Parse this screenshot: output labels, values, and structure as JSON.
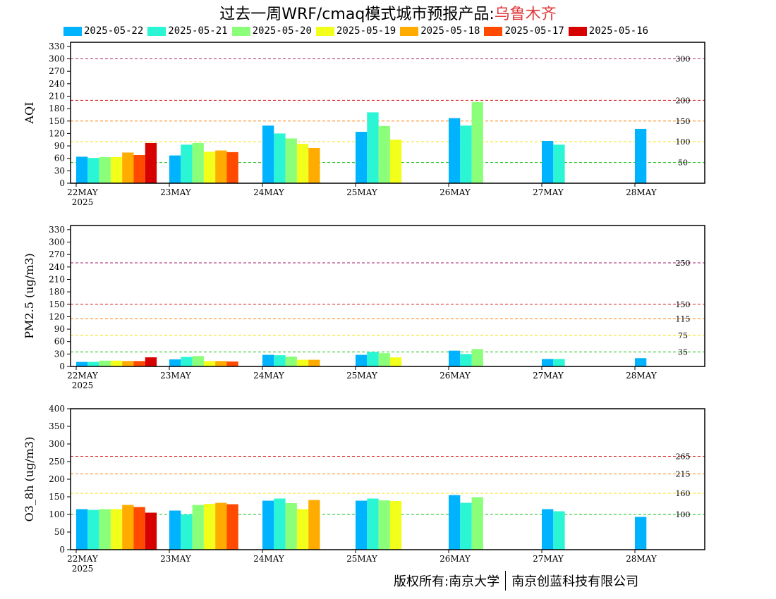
{
  "title": {
    "prefix": "过去一周WRF/cmaq模式城市预报产品:",
    "city": "乌鲁木齐"
  },
  "legend": [
    {
      "label": "2025-05-22",
      "color": "#00b3ff"
    },
    {
      "label": "2025-05-21",
      "color": "#2af5d5"
    },
    {
      "label": "2025-05-20",
      "color": "#8cff7a"
    },
    {
      "label": "2025-05-19",
      "color": "#f2ff1a"
    },
    {
      "label": "2025-05-18",
      "color": "#ffab00"
    },
    {
      "label": "2025-05-17",
      "color": "#ff4a00"
    },
    {
      "label": "2025-05-16",
      "color": "#d70000"
    }
  ],
  "footer": {
    "left": "版权所有:南京大学",
    "right": "南京创蓝科技有限公司"
  },
  "chart_data": [
    {
      "type": "bar",
      "ylabel": "AQI",
      "ylim": [
        0,
        340
      ],
      "yticks": [
        0,
        30,
        60,
        90,
        120,
        150,
        180,
        210,
        240,
        270,
        300,
        330
      ],
      "categories": [
        "22MAY",
        "23MAY",
        "24MAY",
        "25MAY",
        "26MAY",
        "27MAY",
        "28MAY"
      ],
      "year_label": "2025",
      "series": [
        {
          "name": "2025-05-22",
          "values": [
            64,
            67,
            139,
            124,
            157,
            102,
            131
          ]
        },
        {
          "name": "2025-05-21",
          "values": [
            61,
            93,
            120,
            171,
            139,
            93,
            null
          ]
        },
        {
          "name": "2025-05-20",
          "values": [
            63,
            97,
            108,
            138,
            196,
            null,
            null
          ]
        },
        {
          "name": "2025-05-19",
          "values": [
            63,
            76,
            95,
            105,
            null,
            null,
            null
          ]
        },
        {
          "name": "2025-05-18",
          "values": [
            74,
            79,
            85,
            null,
            null,
            null,
            null
          ]
        },
        {
          "name": "2025-05-17",
          "values": [
            68,
            75,
            null,
            null,
            null,
            null,
            null
          ]
        },
        {
          "name": "2025-05-16",
          "values": [
            97,
            null,
            null,
            null,
            null,
            null,
            null
          ]
        }
      ],
      "reference_lines": [
        {
          "value": 300,
          "label": "300",
          "color": "#a8206b"
        },
        {
          "value": 200,
          "label": "200",
          "color": "#d81818"
        },
        {
          "value": 150,
          "label": "150",
          "color": "#ff8000"
        },
        {
          "value": 100,
          "label": "100",
          "color": "#f0e000"
        },
        {
          "value": 50,
          "label": "50",
          "color": "#10c010"
        }
      ]
    },
    {
      "type": "bar",
      "ylabel": "PM2.5 (ug/m3)",
      "ylim": [
        0,
        340
      ],
      "yticks": [
        0,
        30,
        60,
        90,
        120,
        150,
        180,
        210,
        240,
        270,
        300,
        330
      ],
      "categories": [
        "22MAY",
        "23MAY",
        "24MAY",
        "25MAY",
        "26MAY",
        "27MAY",
        "28MAY"
      ],
      "year_label": "2025",
      "series": [
        {
          "name": "2025-05-22",
          "values": [
            11,
            17,
            28,
            28,
            38,
            18,
            20
          ]
        },
        {
          "name": "2025-05-21",
          "values": [
            11,
            23,
            27,
            35,
            30,
            18,
            null
          ]
        },
        {
          "name": "2025-05-20",
          "values": [
            14,
            25,
            24,
            32,
            42,
            null,
            null
          ]
        },
        {
          "name": "2025-05-19",
          "values": [
            14,
            13,
            16,
            22,
            null,
            null,
            null
          ]
        },
        {
          "name": "2025-05-18",
          "values": [
            13,
            13,
            16,
            null,
            null,
            null,
            null
          ]
        },
        {
          "name": "2025-05-17",
          "values": [
            13,
            12,
            null,
            null,
            null,
            null,
            null
          ]
        },
        {
          "name": "2025-05-16",
          "values": [
            22,
            null,
            null,
            null,
            null,
            null,
            null
          ]
        }
      ],
      "reference_lines": [
        {
          "value": 250,
          "label": "250",
          "color": "#a8206b"
        },
        {
          "value": 150,
          "label": "150",
          "color": "#d81818"
        },
        {
          "value": 115,
          "label": "115",
          "color": "#ff8000"
        },
        {
          "value": 75,
          "label": "75",
          "color": "#f0e000"
        },
        {
          "value": 35,
          "label": "35",
          "color": "#10c010"
        }
      ]
    },
    {
      "type": "bar",
      "ylabel": "O3_8h (ug/m3)",
      "ylim": [
        0,
        400
      ],
      "yticks": [
        0,
        50,
        100,
        150,
        200,
        250,
        300,
        350,
        400
      ],
      "categories": [
        "22MAY",
        "23MAY",
        "24MAY",
        "25MAY",
        "26MAY",
        "27MAY",
        "28MAY"
      ],
      "year_label": "2025",
      "series": [
        {
          "name": "2025-05-22",
          "values": [
            115,
            111,
            139,
            139,
            155,
            115,
            93
          ]
        },
        {
          "name": "2025-05-21",
          "values": [
            113,
            100,
            145,
            145,
            133,
            109,
            null
          ]
        },
        {
          "name": "2025-05-20",
          "values": [
            115,
            127,
            132,
            140,
            149,
            null,
            null
          ]
        },
        {
          "name": "2025-05-19",
          "values": [
            115,
            130,
            115,
            138,
            null,
            null,
            null
          ]
        },
        {
          "name": "2025-05-18",
          "values": [
            127,
            133,
            141,
            null,
            null,
            null,
            null
          ]
        },
        {
          "name": "2025-05-17",
          "values": [
            121,
            129,
            null,
            null,
            null,
            null,
            null
          ]
        },
        {
          "name": "2025-05-16",
          "values": [
            105,
            null,
            null,
            null,
            null,
            null,
            null
          ]
        }
      ],
      "reference_lines": [
        {
          "value": 265,
          "label": "265",
          "color": "#d81818"
        },
        {
          "value": 215,
          "label": "215",
          "color": "#ff8000"
        },
        {
          "value": 160,
          "label": "160",
          "color": "#f0e000"
        },
        {
          "value": 100,
          "label": "100",
          "color": "#10c010"
        }
      ]
    }
  ]
}
